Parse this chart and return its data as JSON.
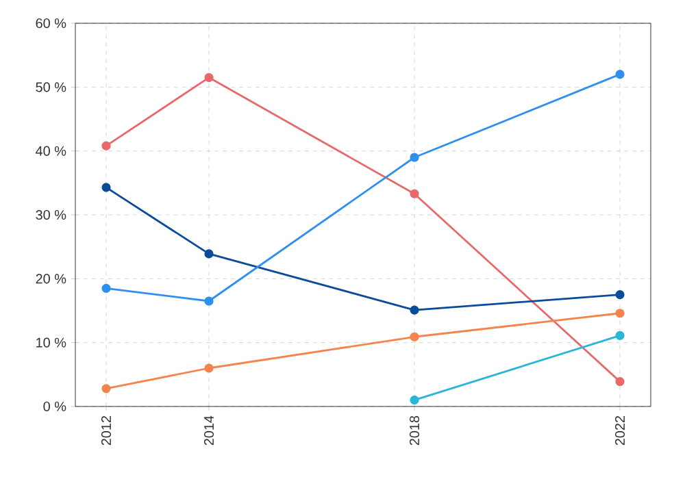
{
  "chart_data": {
    "type": "line",
    "x": [
      2012,
      2014,
      2018,
      2022
    ],
    "xlim": [
      2011.4,
      2022.6
    ],
    "xticks": [
      2012,
      2014,
      2018,
      2022
    ],
    "ylim": [
      0,
      60
    ],
    "yticks": [
      {
        "value": 0,
        "label": "0 %"
      },
      {
        "value": 10,
        "label": "10 %"
      },
      {
        "value": 20,
        "label": "20 %"
      },
      {
        "value": 30,
        "label": "30 %"
      },
      {
        "value": 40,
        "label": "40 %"
      },
      {
        "value": 50,
        "label": "50 %"
      },
      {
        "value": 60,
        "label": "60 %"
      }
    ],
    "series": [
      {
        "color": "#e8696b",
        "values": [
          40.8,
          51.5,
          33.3,
          3.9
        ]
      },
      {
        "color": "#0a4c9a",
        "values": [
          34.3,
          23.9,
          15.1,
          17.5
        ]
      },
      {
        "color": "#2e8fef",
        "values": [
          18.5,
          16.5,
          39.0,
          52.0
        ]
      },
      {
        "color": "#f5844c",
        "values": [
          2.8,
          6.0,
          10.9,
          14.6
        ]
      },
      {
        "color": "#29b6d8",
        "values": [
          null,
          null,
          1.0,
          11.1
        ]
      }
    ],
    "grid": true,
    "marker": "circle",
    "line_style": "solid"
  }
}
